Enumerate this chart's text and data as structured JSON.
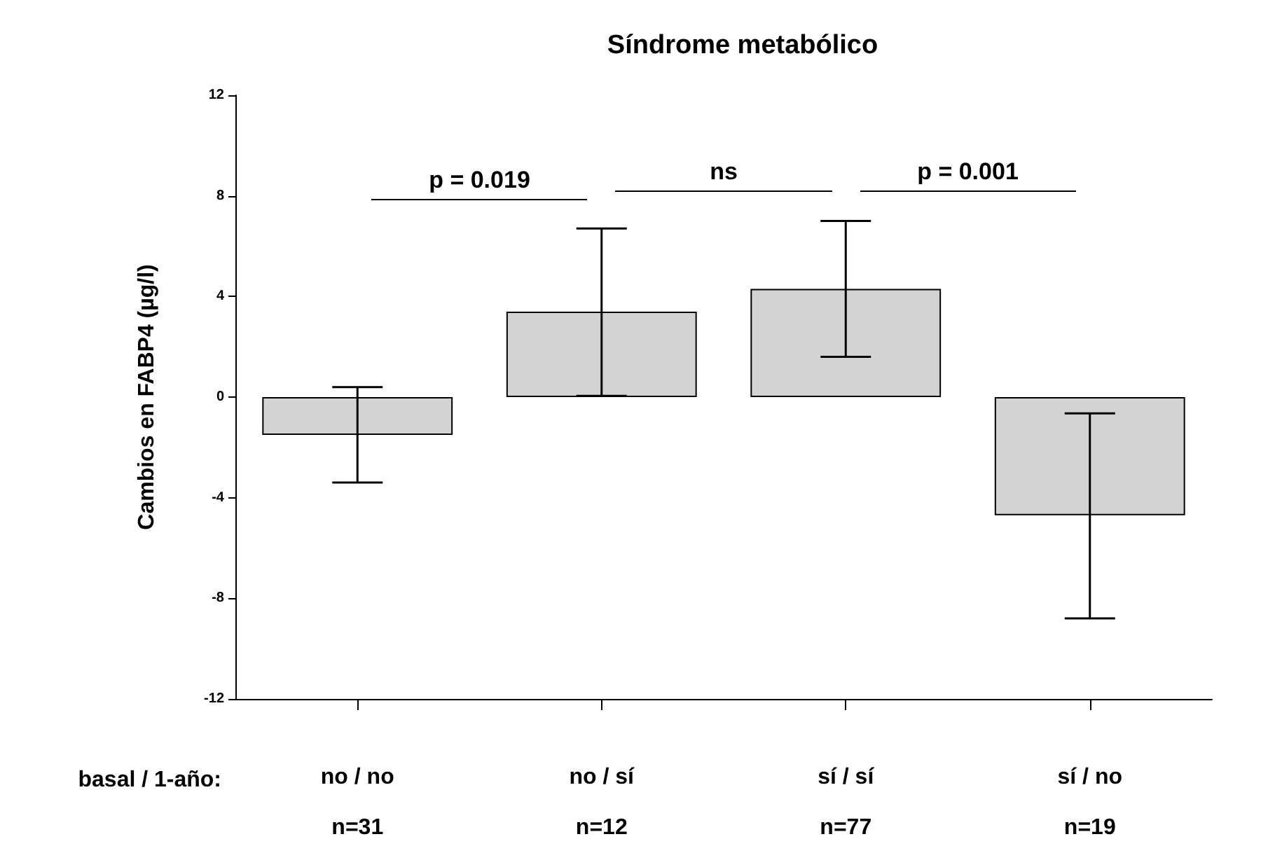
{
  "chart_data": {
    "type": "bar",
    "title": "Síndrome metabólico",
    "ylabel": "Cambios en FABP4 (µg/l)",
    "xlabel": "basal / 1-año:",
    "categories": [
      "no / no\nn=31",
      "no / sí\nn=12",
      "sí / sí\nn=77",
      "sí / no\nn=19"
    ],
    "values": [
      -1.5,
      3.4,
      4.3,
      -4.7
    ],
    "errors": [
      [
        -3.4,
        0.4
      ],
      [
        0.05,
        6.7
      ],
      [
        1.6,
        7.0
      ],
      [
        -8.8,
        -0.65
      ]
    ],
    "color": "#d3d3d3",
    "ylim": [
      -12,
      12
    ],
    "yticks": [
      -12,
      -8,
      -4,
      0,
      4,
      8,
      12
    ],
    "grid": false,
    "annotations": [
      "p = 0.019",
      "ns",
      "p = 0.001"
    ]
  }
}
